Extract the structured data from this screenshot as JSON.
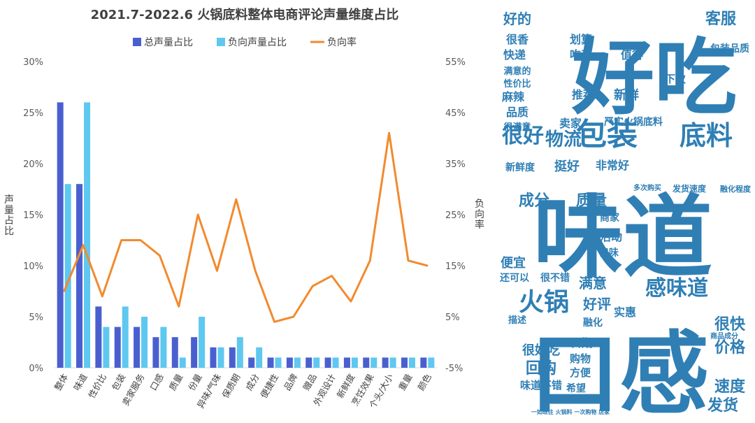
{
  "chart_data": {
    "type": "bar",
    "title": "2021.7-2022.6 火锅底料整体电商评论声量维度占比",
    "categories": [
      "整体",
      "味道",
      "性价比",
      "包装",
      "卖家服务",
      "口感",
      "质量",
      "份量",
      "异味/气味",
      "保质期",
      "成分",
      "便捷性",
      "品牌",
      "赠品",
      "外观设计",
      "新鲜度",
      "烹饪效果",
      "个头/大小",
      "重量",
      "颜色"
    ],
    "series": [
      {
        "name": "总声量占比",
        "axis": "left",
        "kind": "bar",
        "color": "#4a5fcf",
        "values": [
          26,
          18,
          6,
          4,
          4,
          3,
          3,
          3,
          2,
          2,
          1,
          1,
          1,
          1,
          1,
          1,
          1,
          1,
          1,
          1
        ]
      },
      {
        "name": "负向声量占比",
        "axis": "left",
        "kind": "bar",
        "color": "#5ec8f0",
        "values": [
          18,
          26,
          4,
          6,
          5,
          4,
          1,
          5,
          2,
          3,
          2,
          1,
          1,
          1,
          1,
          1,
          1,
          1,
          1,
          1
        ]
      },
      {
        "name": "负向率",
        "axis": "right",
        "kind": "line",
        "color": "#f28a2e",
        "values": [
          10,
          19,
          9,
          20,
          20,
          17,
          7,
          25,
          14,
          28,
          14,
          4,
          5,
          11,
          13,
          8,
          16,
          41,
          16,
          15
        ]
      }
    ],
    "ylabel": "声量占比",
    "y2label": "负向率",
    "ylim": [
      0,
      30
    ],
    "y2lim": [
      -5,
      55
    ],
    "y_ticks": [
      "0%",
      "5%",
      "10%",
      "15%",
      "20%",
      "25%",
      "30%"
    ],
    "y2_ticks": [
      "-5%",
      "5%",
      "15%",
      "25%",
      "35%",
      "45%",
      "55%"
    ],
    "legend_position": "top"
  },
  "word_cloud": {
    "background": "#ffffff",
    "color": "#2f7fb5",
    "words": [
      {
        "text": "好吃"
      },
      {
        "text": "味道"
      },
      {
        "text": "口感"
      },
      {
        "text": "包装"
      },
      {
        "text": "底料"
      },
      {
        "text": "火锅"
      },
      {
        "text": "很好"
      },
      {
        "text": "物流"
      },
      {
        "text": "感味道"
      },
      {
        "text": "成分"
      },
      {
        "text": "质量"
      },
      {
        "text": "客服"
      },
      {
        "text": "好的"
      },
      {
        "text": "很香"
      },
      {
        "text": "快递"
      },
      {
        "text": "划算"
      },
      {
        "text": "吃了"
      },
      {
        "text": "值得"
      },
      {
        "text": "包装品质"
      },
      {
        "text": "满意的"
      },
      {
        "text": "性价比"
      },
      {
        "text": "麻辣"
      },
      {
        "text": "推荐"
      },
      {
        "text": "新鲜"
      },
      {
        "text": "下次"
      },
      {
        "text": "品质"
      },
      {
        "text": "很满意"
      },
      {
        "text": "卖家"
      },
      {
        "text": "严实火锅底料"
      },
      {
        "text": "新鲜度"
      },
      {
        "text": "挺好"
      },
      {
        "text": "非常好"
      },
      {
        "text": "商家"
      },
      {
        "text": "活动"
      },
      {
        "text": "便宜"
      },
      {
        "text": "口味"
      },
      {
        "text": "还可以"
      },
      {
        "text": "很不错"
      },
      {
        "text": "满意"
      },
      {
        "text": "好评"
      },
      {
        "text": "实惠"
      },
      {
        "text": "融化"
      },
      {
        "text": "很快"
      },
      {
        "text": "描述"
      },
      {
        "text": "价格"
      },
      {
        "text": "日期"
      },
      {
        "text": "很好吃"
      },
      {
        "text": "回购"
      },
      {
        "text": "购物"
      },
      {
        "text": "方便"
      },
      {
        "text": "希望"
      },
      {
        "text": "味道不错"
      },
      {
        "text": "速度"
      },
      {
        "text": "发货"
      },
      {
        "text": "发货速度"
      },
      {
        "text": "融化程度"
      },
      {
        "text": "多次购买"
      },
      {
        "text": "商品成分"
      },
      {
        "text": "一如既往 火锅料 一次购物 店家"
      }
    ]
  }
}
